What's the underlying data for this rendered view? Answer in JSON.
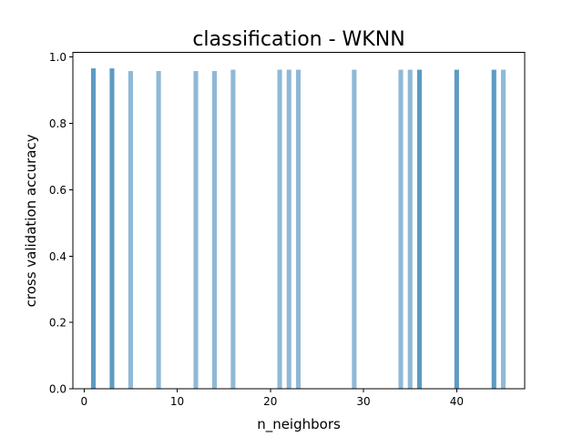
{
  "chart_data": {
    "type": "bar",
    "title": "classification - WKNN",
    "xlabel": "n_neighbors",
    "ylabel": "cross validation accuracy",
    "xlim": [
      -1.2,
      47.3
    ],
    "ylim": [
      0,
      1.013
    ],
    "xticks": [
      0,
      10,
      20,
      30,
      40
    ],
    "yticks": [
      0.0,
      0.2,
      0.4,
      0.6,
      0.8,
      1.0
    ],
    "xtick_labels": [
      "0",
      "10",
      "20",
      "30",
      "40"
    ],
    "ytick_labels": [
      "0.0",
      "0.2",
      "0.4",
      "0.6",
      "0.8",
      "1.0"
    ],
    "bar_width": 0.5,
    "grid": false,
    "colors": {
      "light": "#8fb9d6",
      "dark": "#5c9bc4"
    },
    "x": [
      1,
      3,
      5,
      8,
      12,
      14,
      16,
      21,
      22,
      23,
      29,
      34,
      35,
      36,
      40,
      44,
      45
    ],
    "values": [
      0.965,
      0.965,
      0.957,
      0.957,
      0.957,
      0.957,
      0.961,
      0.961,
      0.961,
      0.961,
      0.961,
      0.961,
      0.961,
      0.961,
      0.961,
      0.961,
      0.961
    ],
    "shade": [
      "dark",
      "dark",
      "light",
      "light",
      "light",
      "light",
      "light",
      "light",
      "light",
      "light",
      "light",
      "light",
      "light",
      "dark",
      "dark",
      "dark",
      "light"
    ]
  }
}
